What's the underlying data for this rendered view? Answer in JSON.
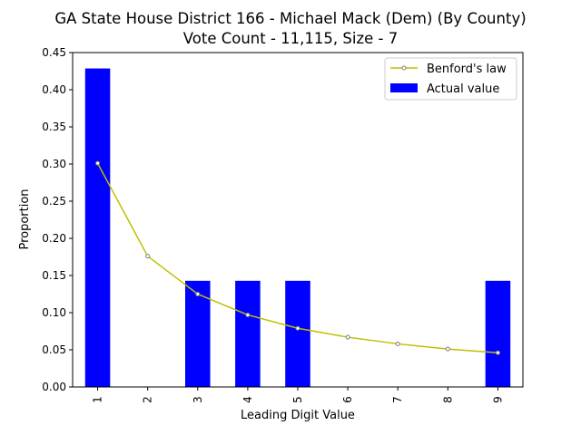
{
  "chart_data": {
    "type": "bar",
    "title": "GA State House District 166 - Michael Mack (Dem) (By County)",
    "subtitle": "Vote Count - 11,115, Size - 7",
    "xlabel": "Leading Digit Value",
    "ylabel": "Proportion",
    "categories": [
      "1",
      "2",
      "3",
      "4",
      "5",
      "6",
      "7",
      "8",
      "9"
    ],
    "ylim": [
      0,
      0.45
    ],
    "yticks": [
      "0.00",
      "0.05",
      "0.10",
      "0.15",
      "0.20",
      "0.25",
      "0.30",
      "0.35",
      "0.40",
      "0.45"
    ],
    "grid": false,
    "legend_position": "top-right",
    "series": [
      {
        "name": "Benford's law",
        "type": "line",
        "color": "#bfbf00",
        "values": [
          0.301,
          0.176,
          0.125,
          0.097,
          0.079,
          0.067,
          0.058,
          0.051,
          0.046
        ]
      },
      {
        "name": "Actual value",
        "type": "bar",
        "color": "#0000ff",
        "values": [
          0.4286,
          0.0,
          0.1429,
          0.1429,
          0.1429,
          0.0,
          0.0,
          0.0,
          0.1429
        ]
      }
    ]
  }
}
